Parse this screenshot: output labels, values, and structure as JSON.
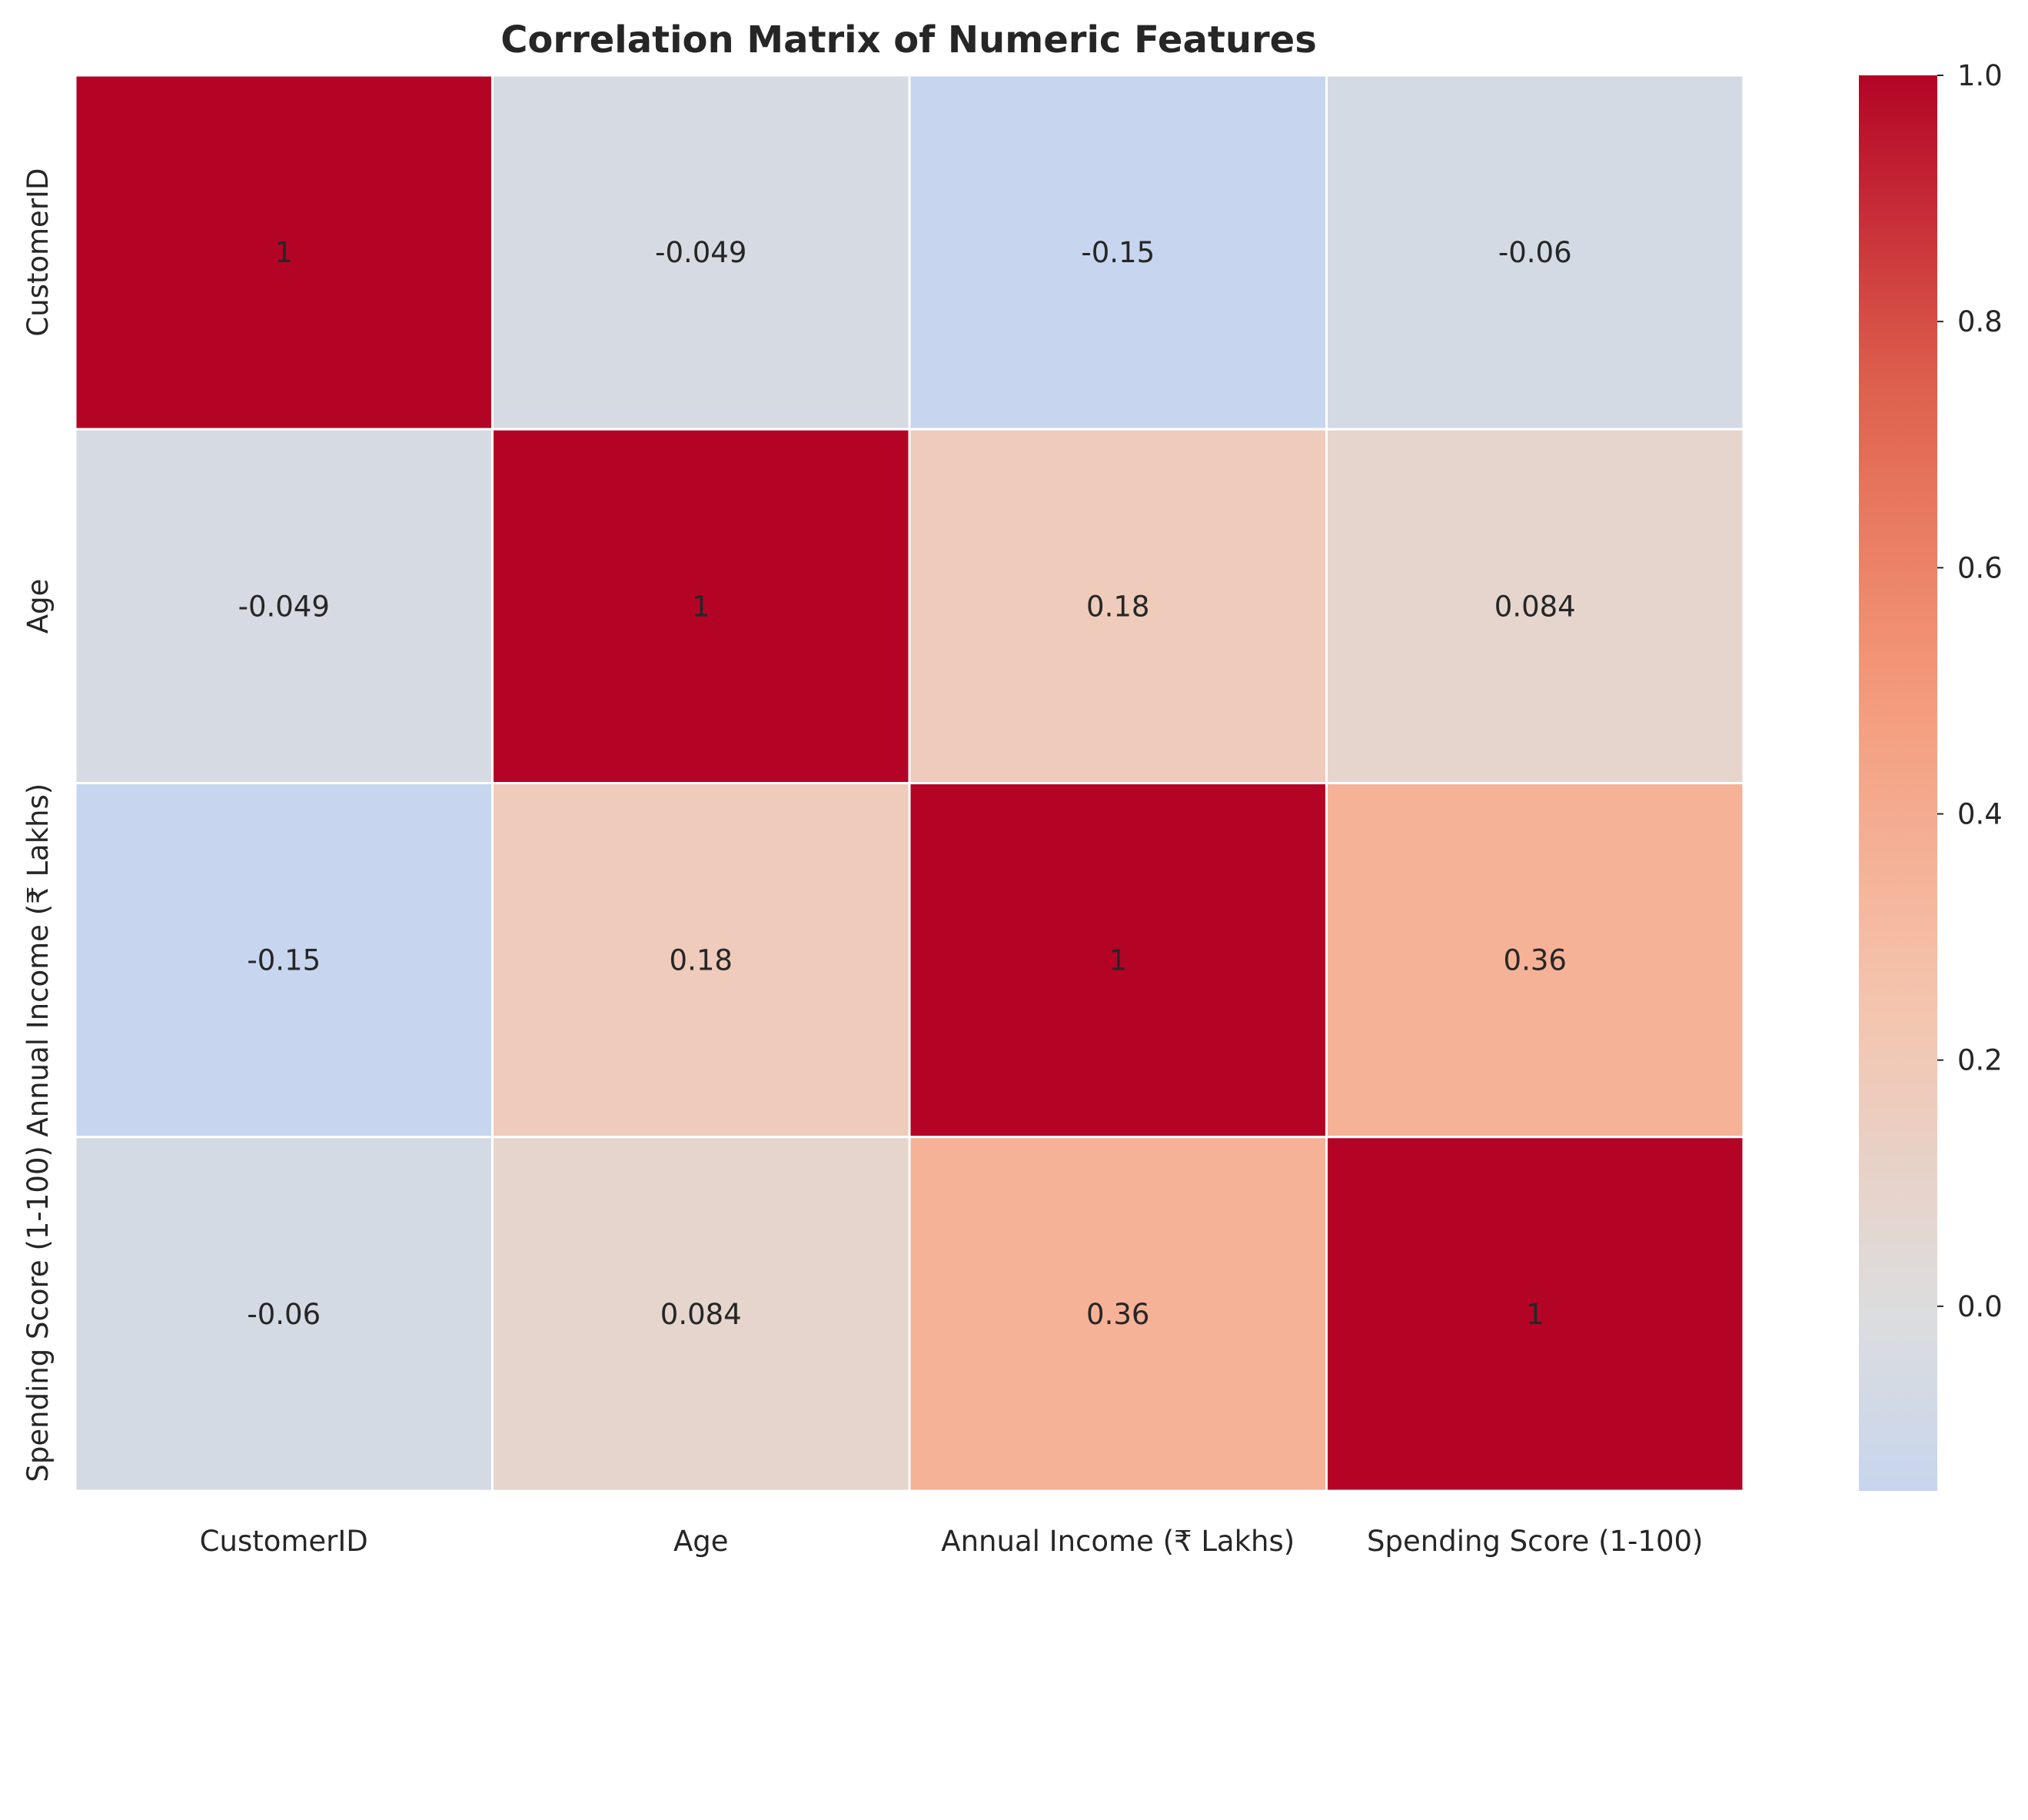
{
  "chart_data": {
    "type": "heatmap",
    "title": "Correlation Matrix of Numeric Features",
    "xlabel": "",
    "ylabel": "",
    "categories": [
      "CustomerID",
      "Age",
      "Annual Income (₹ Lakhs)",
      "Spending Score (1-100)"
    ],
    "values": [
      [
        1,
        -0.049,
        -0.15,
        -0.06
      ],
      [
        -0.049,
        1,
        0.18,
        0.084
      ],
      [
        -0.15,
        0.18,
        1,
        0.36
      ],
      [
        -0.06,
        0.084,
        0.36,
        1
      ]
    ],
    "cell_labels": [
      [
        "1",
        "-0.049",
        "-0.15",
        "-0.06"
      ],
      [
        "-0.049",
        "1",
        "0.18",
        "0.084"
      ],
      [
        "-0.15",
        "0.18",
        "1",
        "0.36"
      ],
      [
        "-0.06",
        "0.084",
        "0.36",
        "1"
      ]
    ],
    "colormap": "coolwarm",
    "center": 0,
    "colorbar": {
      "range": [
        -0.15,
        1.0
      ],
      "ticks": [
        0.0,
        0.2,
        0.4,
        0.6,
        0.8,
        1.0
      ],
      "tick_labels": [
        "0.0",
        "0.2",
        "0.4",
        "0.6",
        "0.8",
        "1.0"
      ]
    },
    "grid": false,
    "legend": "colorbar right"
  }
}
